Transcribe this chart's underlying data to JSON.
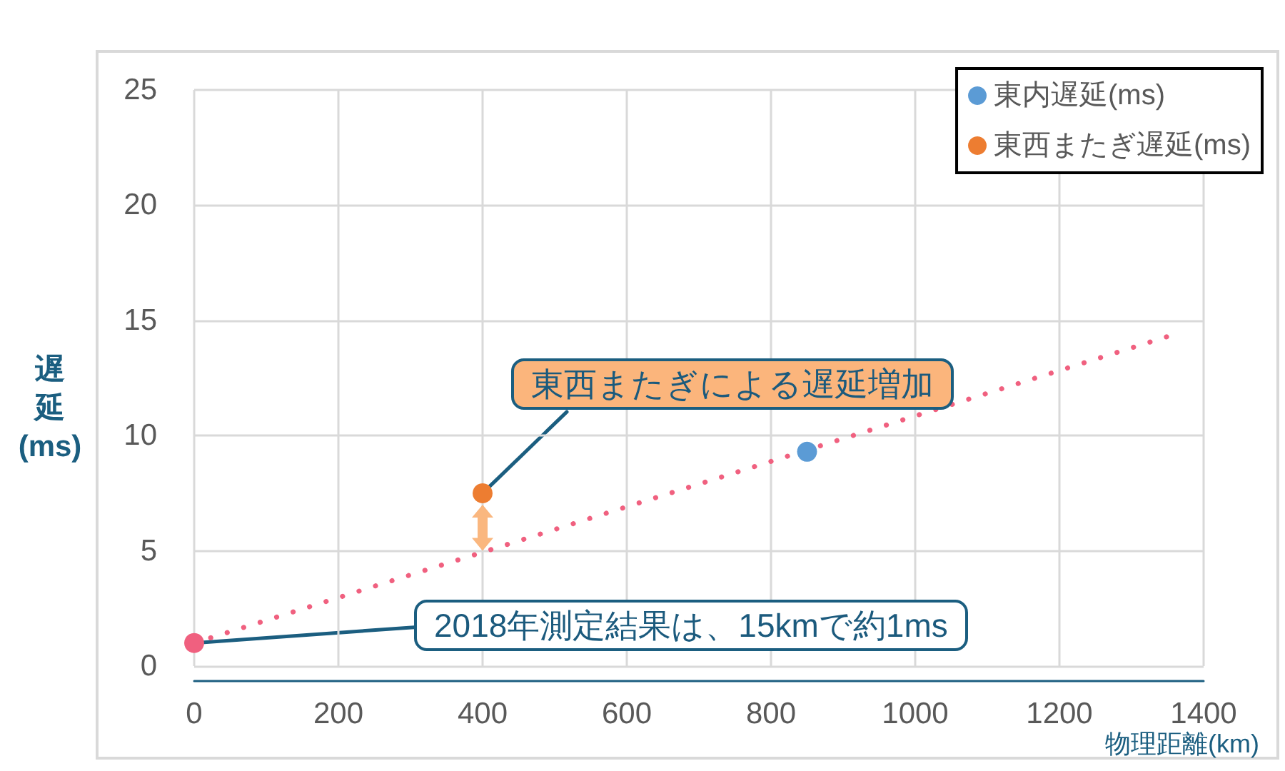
{
  "chart_data": {
    "type": "scatter",
    "xlabel": "物理距離(km)",
    "ylabel": "遅延(ms)",
    "xlim": [
      0,
      1400
    ],
    "xticks": [
      0,
      200,
      400,
      600,
      800,
      1000,
      1200,
      1400
    ],
    "ylim": [
      0,
      25
    ],
    "yticks": [
      0,
      5,
      10,
      15,
      20,
      25
    ],
    "grid": true,
    "legend": "top right",
    "marker": "circle",
    "series": [
      {
        "name": "東内遅延(ms)",
        "color": "#5b9bd5",
        "x": [
          850
        ],
        "values": [
          9.3
        ]
      },
      {
        "name": "東西またぎ遅延(ms)",
        "color": "#ed7d31",
        "x": [
          400
        ],
        "values": [
          7.5
        ]
      },
      {
        "type": "line",
        "color": "#f0607f",
        "x": [
          0,
          1360
        ],
        "values": [
          1,
          14.4
        ],
        "marker": "none",
        "line_style": "dotted"
      },
      {
        "color": "#f0607f",
        "x": [
          0
        ],
        "values": [
          1
        ]
      }
    ],
    "annotations": [
      {
        "text": "東西またぎによる遅延増加",
        "x": 400,
        "y": 7.5
      },
      {
        "text": "2018年測定結果は、15kmで約1ms",
        "x": 0,
        "y": 1
      }
    ]
  }
}
